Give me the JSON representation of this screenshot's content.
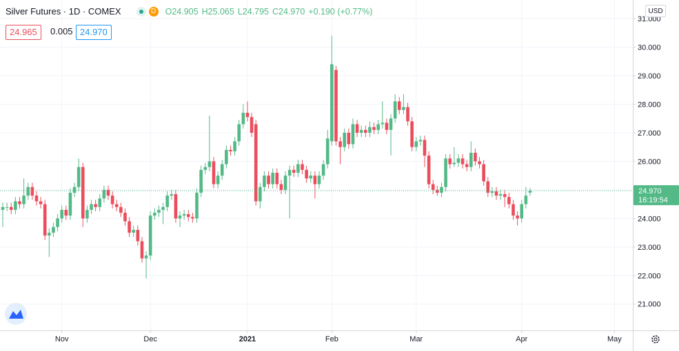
{
  "chart_data": {
    "type": "candlestick",
    "header": {
      "title": "Silver Futures · 1D · COMEX",
      "badge": "D",
      "ohlc": [
        "O24.905",
        "H25.065",
        "L24.795",
        "C24.970"
      ],
      "change": "+0.190 (+0.77%)"
    },
    "bid": "24.965",
    "spread": "0.005",
    "ask": "24.970",
    "currency": "USD",
    "last_label": "24.970",
    "countdown": "16:19:54",
    "up_color": "#53b987",
    "down_color": "#eb4d5c",
    "grid": true,
    "ylim": [
      20.08,
      31.65
    ],
    "yticks": [
      {
        "value": 21,
        "label": "21.000"
      },
      {
        "value": 22,
        "label": "22.000"
      },
      {
        "value": 23,
        "label": "23.000"
      },
      {
        "value": 24,
        "label": "24.000"
      },
      {
        "value": 25,
        "label": "25.000"
      },
      {
        "value": 26,
        "label": "26.000"
      },
      {
        "value": 27,
        "label": "27.000"
      },
      {
        "value": 28,
        "label": "28.000"
      },
      {
        "value": 29,
        "label": "29.000"
      },
      {
        "value": 30,
        "label": "30.000"
      },
      {
        "value": 31,
        "label": "31.000"
      }
    ],
    "categories": [
      null,
      null,
      null,
      null,
      null,
      null,
      null,
      null,
      null,
      null,
      null,
      null,
      null,
      null,
      "Nov",
      null,
      null,
      null,
      null,
      null,
      null,
      null,
      null,
      null,
      null,
      null,
      null,
      null,
      null,
      null,
      null,
      null,
      null,
      null,
      null,
      "Dec",
      null,
      null,
      null,
      null,
      null,
      null,
      null,
      null,
      null,
      null,
      null,
      null,
      null,
      null,
      null,
      null,
      null,
      null,
      null,
      null,
      null,
      null,
      "2021",
      null,
      null,
      null,
      null,
      null,
      null,
      null,
      null,
      null,
      null,
      null,
      null,
      null,
      null,
      null,
      null,
      null,
      null,
      null,
      "Feb",
      null,
      null,
      null,
      null,
      null,
      null,
      null,
      null,
      null,
      null,
      null,
      null,
      null,
      null,
      null,
      null,
      null,
      null,
      null,
      "Mar",
      null,
      null,
      null,
      null,
      null,
      null,
      null,
      null,
      null,
      null,
      null,
      null,
      null,
      null,
      null,
      null,
      null,
      null,
      null,
      null,
      null,
      null,
      null,
      null,
      "Apr",
      null,
      null,
      null,
      null,
      null,
      null,
      null,
      null,
      null,
      null,
      null,
      null,
      null,
      null,
      null,
      null,
      null,
      null,
      null,
      null,
      null,
      "May"
    ],
    "open": [
      24.3,
      24.4,
      24.4,
      24.3,
      24.6,
      24.5,
      24.8,
      25.1,
      24.8,
      24.6,
      24.5,
      23.4,
      23.5,
      23.7,
      24.0,
      24.3,
      24.1,
      24.9,
      25.1,
      25.8,
      24.0,
      24.3,
      24.5,
      24.4,
      24.7,
      25.0,
      24.8,
      24.5,
      24.4,
      24.2,
      23.9,
      23.5,
      23.6,
      23.2,
      22.6,
      22.7,
      24.1,
      24.2,
      24.3,
      24.4,
      24.8,
      24.85,
      24.0,
      24.1,
      24.15,
      24.05,
      24.0,
      24.9,
      25.7,
      25.8,
      26.0,
      25.2,
      25.5,
      25.9,
      26.4,
      26.35,
      26.7,
      27.3,
      27.7,
      27.55,
      27.3,
      24.6,
      25.1,
      25.5,
      25.2,
      25.6,
      25.2,
      25.0,
      25.5,
      25.7,
      25.6,
      25.9,
      25.7,
      25.4,
      25.5,
      25.2,
      25.5,
      25.9,
      26.7,
      29.2,
      26.7,
      26.5,
      27.0,
      26.6,
      27.3,
      27.0,
      27.1,
      27.0,
      27.2,
      27.1,
      27.3,
      27.35,
      27.1,
      27.5,
      28.1,
      27.8,
      27.9,
      27.4,
      26.5,
      26.7,
      26.75,
      26.2,
      25.2,
      25.0,
      24.9,
      25.1,
      26.1,
      25.9,
      25.95,
      26.1,
      25.9,
      25.8,
      26.3,
      26.0,
      25.9,
      25.3,
      24.9,
      24.95,
      24.8,
      24.85,
      24.75,
      24.5,
      24.1,
      24.0,
      24.5,
      24.905,
      null,
      null,
      null,
      null,
      null,
      null,
      null,
      null,
      null,
      null,
      null,
      null,
      null,
      null,
      null,
      null,
      null,
      null,
      null,
      null
    ],
    "high": [
      24.55,
      24.55,
      24.55,
      24.75,
      24.75,
      25.4,
      25.25,
      25.25,
      24.95,
      24.75,
      24.65,
      23.65,
      23.85,
      24.15,
      24.45,
      24.45,
      25.05,
      25.25,
      26.1,
      25.95,
      24.45,
      24.65,
      24.65,
      24.85,
      25.15,
      25.15,
      24.95,
      24.65,
      24.55,
      24.35,
      24.05,
      23.75,
      23.75,
      23.35,
      22.85,
      24.25,
      24.35,
      24.45,
      24.55,
      24.95,
      25.0,
      25.0,
      24.25,
      24.3,
      24.3,
      24.2,
      25.05,
      25.85,
      25.95,
      27.6,
      26.15,
      25.65,
      26.05,
      26.55,
      26.55,
      26.85,
      27.45,
      28.0,
      28.1,
      27.7,
      27.45,
      25.25,
      25.65,
      25.65,
      25.75,
      25.75,
      25.35,
      25.65,
      25.85,
      25.85,
      26.05,
      26.05,
      25.85,
      25.65,
      25.65,
      25.65,
      26.05,
      27.1,
      30.4,
      29.35,
      26.85,
      27.15,
      27.15,
      27.5,
      27.45,
      27.25,
      27.25,
      27.4,
      27.35,
      27.45,
      28.1,
      27.5,
      27.65,
      28.35,
      28.25,
      28.35,
      28.05,
      27.55,
      26.85,
      26.9,
      26.9,
      26.35,
      25.35,
      25.15,
      25.25,
      26.25,
      26.25,
      26.5,
      26.25,
      26.25,
      26.05,
      26.7,
      26.45,
      26.15,
      26.05,
      25.45,
      25.1,
      25.1,
      25.0,
      25.0,
      24.9,
      24.65,
      24.25,
      24.65,
      25.1,
      25.065,
      null,
      null,
      null,
      null,
      null,
      null,
      null,
      null,
      null,
      null,
      null,
      null,
      null,
      null,
      null,
      null,
      null,
      null,
      null,
      null
    ],
    "low": [
      23.7,
      24.25,
      24.15,
      24.15,
      24.35,
      24.35,
      24.65,
      24.65,
      24.45,
      24.35,
      23.25,
      22.65,
      23.35,
      23.55,
      23.85,
      23.95,
      23.95,
      24.75,
      24.95,
      23.7,
      23.85,
      24.15,
      24.25,
      24.25,
      24.55,
      24.65,
      24.35,
      24.25,
      24.05,
      23.75,
      23.35,
      23.35,
      23.05,
      22.45,
      21.9,
      22.55,
      23.95,
      24.05,
      23.8,
      24.25,
      24.65,
      23.85,
      23.7,
      23.95,
      23.9,
      23.85,
      23.85,
      24.75,
      25.55,
      25.65,
      25.05,
      25.05,
      25.35,
      25.75,
      26.2,
      26.2,
      26.55,
      27.15,
      27.4,
      26.85,
      24.45,
      24.35,
      24.95,
      25.05,
      25.05,
      25.05,
      24.85,
      24.85,
      24.0,
      25.45,
      25.45,
      25.55,
      25.25,
      25.25,
      24.7,
      25.05,
      25.35,
      25.75,
      26.55,
      26.55,
      25.9,
      26.35,
      26.45,
      26.45,
      26.85,
      26.85,
      26.85,
      26.85,
      26.95,
      26.95,
      27.15,
      26.95,
      26.2,
      27.35,
      27.65,
      27.65,
      27.25,
      26.35,
      26.35,
      26.55,
      25.8,
      25.05,
      24.85,
      24.8,
      24.75,
      24.95,
      25.75,
      25.8,
      25.8,
      25.75,
      25.65,
      25.65,
      25.85,
      25.75,
      25.15,
      24.75,
      24.75,
      24.65,
      24.65,
      24.4,
      24.35,
      23.95,
      23.75,
      23.85,
      24.35,
      24.795,
      null,
      null,
      null,
      null,
      null,
      null,
      null,
      null,
      null,
      null,
      null,
      null,
      null,
      null,
      null,
      null,
      null,
      null,
      null,
      null
    ],
    "close": [
      24.4,
      24.4,
      24.3,
      24.6,
      24.5,
      24.8,
      25.1,
      24.8,
      24.6,
      24.5,
      23.4,
      23.5,
      23.7,
      24.0,
      24.3,
      24.1,
      24.9,
      25.1,
      25.8,
      24.0,
      24.3,
      24.5,
      24.4,
      24.7,
      25.0,
      24.8,
      24.5,
      24.4,
      24.2,
      23.9,
      23.5,
      23.6,
      23.2,
      22.6,
      22.7,
      24.1,
      24.2,
      24.3,
      24.4,
      24.8,
      24.85,
      24.0,
      24.1,
      24.15,
      24.05,
      24.0,
      24.9,
      25.7,
      25.8,
      26.0,
      25.2,
      25.5,
      25.9,
      26.4,
      26.35,
      26.7,
      27.3,
      27.7,
      27.55,
      27.0,
      24.6,
      25.1,
      25.5,
      25.2,
      25.6,
      25.2,
      25.0,
      25.5,
      25.7,
      25.6,
      25.9,
      25.7,
      25.4,
      25.5,
      25.2,
      25.5,
      25.9,
      26.8,
      29.4,
      26.7,
      26.5,
      27.0,
      26.6,
      27.3,
      27.0,
      27.1,
      27.0,
      27.2,
      27.1,
      27.3,
      27.35,
      27.1,
      27.5,
      28.1,
      27.8,
      27.9,
      27.4,
      26.5,
      26.7,
      26.75,
      26.2,
      25.2,
      25.0,
      24.9,
      25.1,
      26.1,
      25.9,
      25.95,
      26.1,
      25.9,
      25.8,
      26.3,
      26.0,
      25.9,
      25.3,
      24.9,
      24.95,
      24.8,
      24.85,
      24.75,
      24.5,
      24.1,
      24.0,
      24.5,
      24.8,
      24.97,
      null,
      null,
      null,
      null,
      null,
      null,
      null,
      null,
      null,
      null,
      null,
      null,
      null,
      null,
      null,
      null,
      null,
      null,
      null,
      null
    ]
  }
}
